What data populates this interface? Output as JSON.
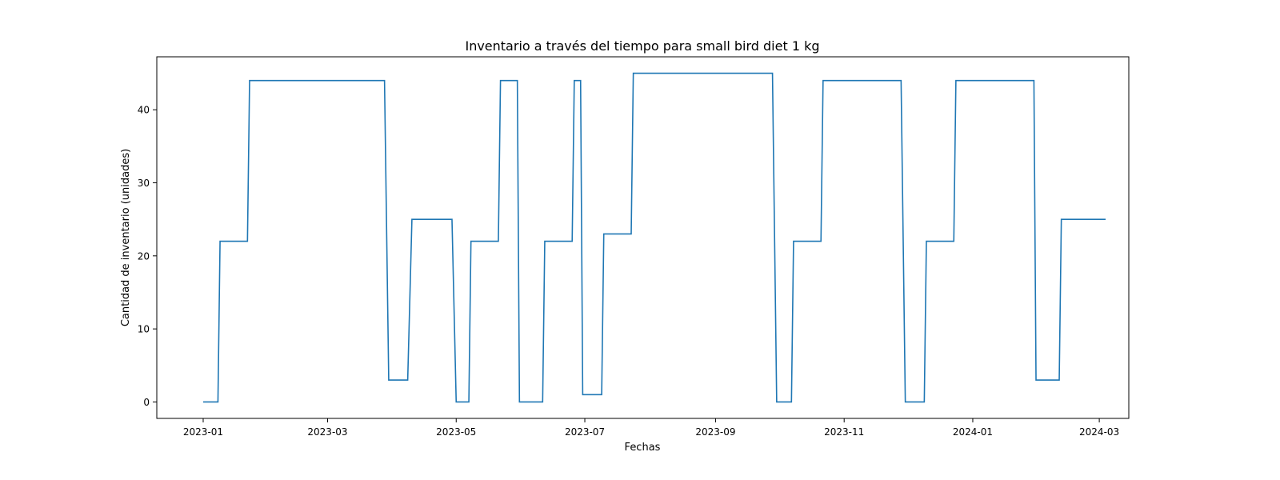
{
  "chart_data": {
    "type": "line",
    "title": "Inventario a través del tiempo para small bird diet 1 kg",
    "xlabel": "Fechas",
    "ylabel": "Cantidad de inventario (unidades)",
    "x_type": "date",
    "xlim": [
      "2022-12-10",
      "2024-03-15"
    ],
    "ylim": [
      -2.25,
      47.25
    ],
    "x_ticks": [
      "2023-01",
      "2023-03",
      "2023-05",
      "2023-07",
      "2023-09",
      "2023-11",
      "2024-01",
      "2024-03"
    ],
    "y_ticks": [
      0,
      10,
      20,
      30,
      40
    ],
    "grid": false,
    "legend": "none",
    "series": [
      {
        "color": "#1f77b4",
        "x": [
          "2023-01-01",
          "2023-01-08",
          "2023-01-09",
          "2023-01-22",
          "2023-01-23",
          "2023-03-28",
          "2023-03-30",
          "2023-04-08",
          "2023-04-10",
          "2023-04-29",
          "2023-05-01",
          "2023-05-07",
          "2023-05-08",
          "2023-05-21",
          "2023-05-22",
          "2023-05-30",
          "2023-05-31",
          "2023-06-11",
          "2023-06-12",
          "2023-06-25",
          "2023-06-26",
          "2023-06-29",
          "2023-06-30",
          "2023-07-09",
          "2023-07-10",
          "2023-07-23",
          "2023-07-24",
          "2023-09-28",
          "2023-09-30",
          "2023-10-07",
          "2023-10-08",
          "2023-10-21",
          "2023-10-22",
          "2023-11-28",
          "2023-11-30",
          "2023-12-09",
          "2023-12-10",
          "2023-12-23",
          "2023-12-24",
          "2024-01-30",
          "2024-01-31",
          "2024-02-11",
          "2024-02-12",
          "2024-03-04"
        ],
        "y": [
          0,
          0,
          22,
          22,
          44,
          44,
          3,
          3,
          25,
          25,
          0,
          0,
          22,
          22,
          44,
          44,
          0,
          0,
          22,
          22,
          44,
          44,
          1,
          1,
          23,
          23,
          45,
          45,
          0,
          0,
          22,
          22,
          44,
          44,
          0,
          0,
          22,
          22,
          44,
          44,
          3,
          3,
          25,
          25
        ]
      }
    ]
  }
}
